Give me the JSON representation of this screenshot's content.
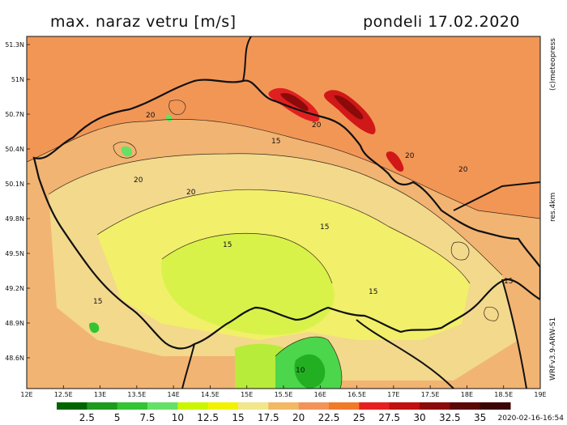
{
  "header": {
    "title": "max. naraz vetru [m/s]",
    "date": "pondeli 17.02.2020"
  },
  "side_labels": {
    "copyright": "(c)meteopress",
    "resolution": "res.4km",
    "model": "WRFv3.9-ARW-S1"
  },
  "timestamp": "2020-02-16-16:54",
  "axes": {
    "lat_labels": [
      "51.3N",
      "51N",
      "50.7N",
      "50.4N",
      "50.1N",
      "49.8N",
      "49.5N",
      "49.2N",
      "48.9N",
      "48.6N"
    ],
    "lon_labels": [
      "12E",
      "12.5E",
      "13E",
      "13.5E",
      "14E",
      "14.5E",
      "15E",
      "15.5E",
      "16E",
      "16.5E",
      "17E",
      "17.5E",
      "18E",
      "18.5E",
      "19E"
    ]
  },
  "contour_labels": [
    "20",
    "20",
    "20",
    "15",
    "15",
    "15",
    "15",
    "15",
    "15",
    "20",
    "20",
    "20",
    "10"
  ],
  "legend": {
    "values": [
      "2.5",
      "5",
      "7.5",
      "10",
      "12.5",
      "15",
      "17.5",
      "20",
      "22.5",
      "25",
      "27.5",
      "30",
      "32.5",
      "35"
    ],
    "colors": [
      "#006400",
      "#1e9a1e",
      "#33c433",
      "#66e066",
      "#ccf500",
      "#f2f200",
      "#f2e68c",
      "#f2b864",
      "#f2945a",
      "#f07a2a",
      "#e62020",
      "#c01010",
      "#8c0a0a",
      "#5a0808",
      "#3a0505"
    ]
  }
}
